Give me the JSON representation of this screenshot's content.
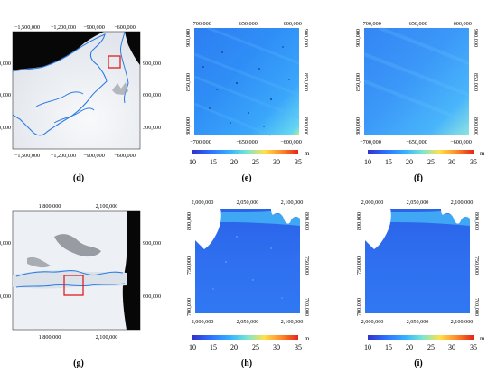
{
  "colorbar": {
    "ticks": [
      "10",
      "15",
      "20",
      "25",
      "30",
      "35"
    ],
    "unit": "m",
    "stops": [
      "#3232c8",
      "#2d6cff",
      "#35b4ff",
      "#7be7cf",
      "#ffe14a",
      "#ff8a2a",
      "#e3261a"
    ]
  },
  "panels": {
    "d": {
      "label": "(d)",
      "x_ticks": [
        "−1,500,000",
        "−1,200,000",
        "−900,000",
        "−600,000"
      ],
      "y_ticks": [
        "900,000",
        "600,000",
        "300,000"
      ]
    },
    "e": {
      "label": "(e)",
      "x_ticks": [
        "−700,000",
        "−650,000",
        "−600,000"
      ],
      "y_ticks": [
        "900,000",
        "850,000",
        "800,000"
      ]
    },
    "f": {
      "label": "(f)",
      "x_ticks": [
        "−700,000",
        "−650,000",
        "−600,000"
      ],
      "y_ticks": [
        "900,000",
        "850,000",
        "800,000"
      ]
    },
    "g": {
      "label": "(g)",
      "x_ticks": [
        "1,800,000",
        "2,100,000"
      ],
      "y_ticks": [
        "900,000",
        "600,000"
      ]
    },
    "h": {
      "label": "(h)",
      "x_ticks": [
        "2,000,000",
        "2,050,000",
        "2,100,000"
      ],
      "y_ticks": [
        "800,000",
        "750,000",
        "700,000"
      ]
    },
    "i": {
      "label": "(i)",
      "x_ticks": [
        "2,000,000",
        "2,050,000",
        "2,100,000"
      ],
      "y_ticks": [
        "800,000",
        "750,000",
        "700,000"
      ]
    }
  }
}
